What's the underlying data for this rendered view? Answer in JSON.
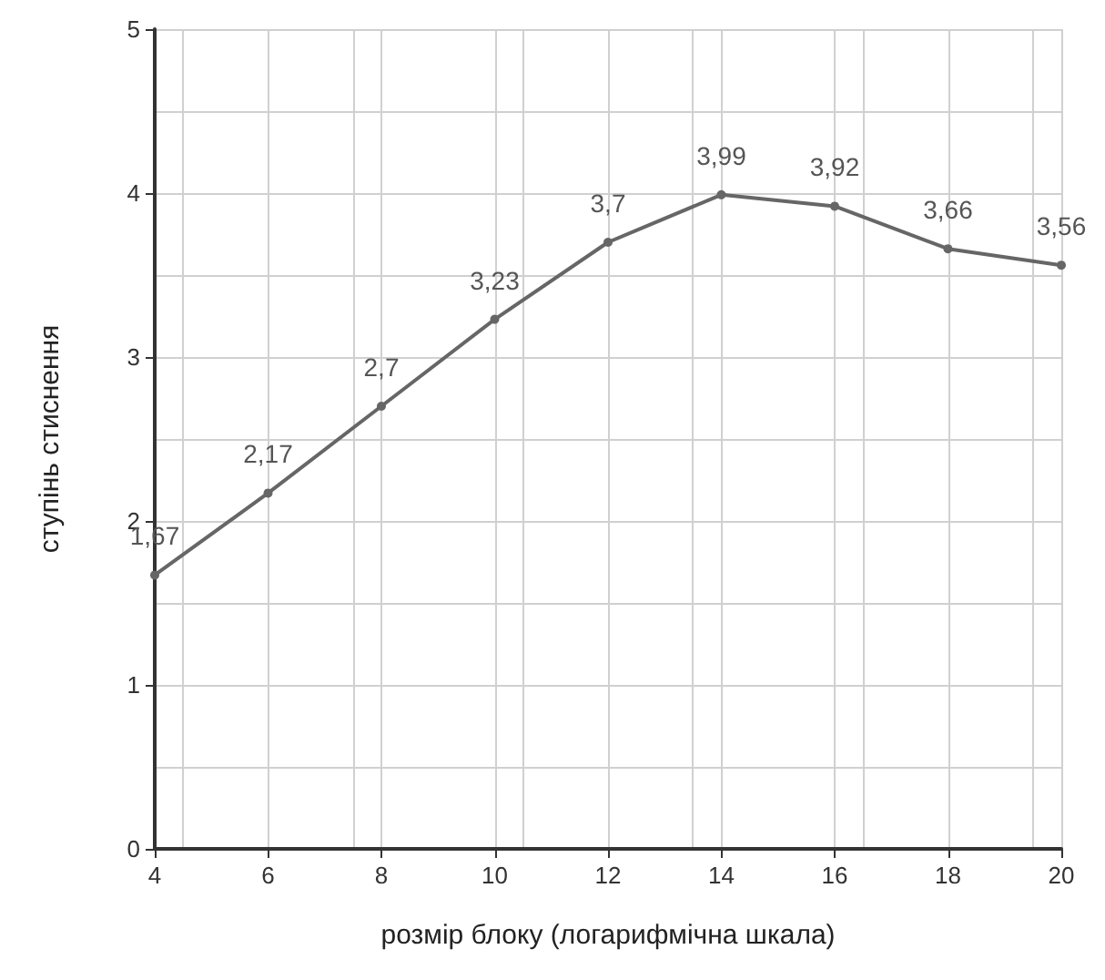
{
  "chart_data": {
    "type": "line",
    "xlabel": "розмір блоку (логарифмічна шкала)",
    "ylabel": "ступінь стиснення",
    "x": [
      4,
      6,
      8,
      10,
      12,
      14,
      16,
      18,
      20
    ],
    "series": [
      {
        "color": "#666666",
        "values": [
          1.67,
          2.17,
          2.7,
          3.23,
          3.7,
          3.99,
          3.92,
          3.66,
          3.56
        ],
        "value_labels": [
          "1,67",
          "2,17",
          "2,7",
          "3,23",
          "3,7",
          "3,99",
          "3,92",
          "3,66",
          "3,56"
        ]
      }
    ],
    "xlim": [
      4,
      20
    ],
    "xticks": [
      4,
      6,
      8,
      10,
      12,
      14,
      16,
      18,
      20
    ],
    "ylim": [
      0,
      5
    ],
    "yticks": [
      0,
      1,
      2,
      3,
      4,
      5
    ],
    "grid": true,
    "marker": "circle",
    "line_style": "solid"
  }
}
